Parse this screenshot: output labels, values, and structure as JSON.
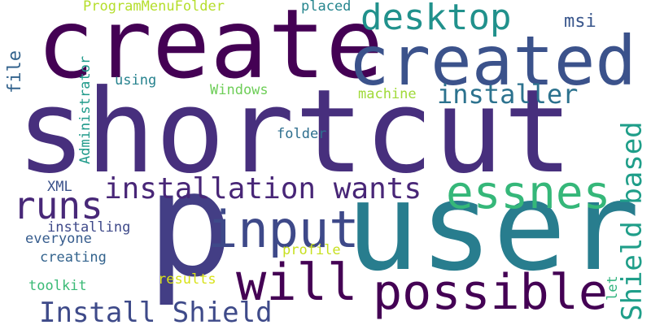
{
  "background": "#ffffff",
  "words": [
    {
      "text": "shortcut",
      "color": "#472f7d"
    },
    {
      "text": "user",
      "color": "#287d8e"
    },
    {
      "text": "create",
      "color": "#440154"
    },
    {
      "text": "created",
      "color": "#3b528b"
    },
    {
      "text": "p",
      "color": "#433e85"
    },
    {
      "text": "input",
      "color": "#3e4989"
    },
    {
      "text": "possible",
      "color": "#440154"
    },
    {
      "text": "will",
      "color": "#440154"
    },
    {
      "text": "essnes",
      "color": "#35b779"
    },
    {
      "text": "desktop",
      "color": "#21918c"
    },
    {
      "text": "installation wants",
      "color": "#482677"
    },
    {
      "text": "runs",
      "color": "#482878"
    },
    {
      "text": "Install Shield",
      "color": "#3e4a89"
    },
    {
      "text": "installer",
      "color": "#2c728e"
    },
    {
      "text": "Shield based",
      "color": "#1f9e89"
    },
    {
      "text": "msi",
      "color": "#39568c"
    },
    {
      "text": "ProgramMenuFolder",
      "color": "#b5de2b"
    },
    {
      "text": "placed",
      "color": "#25858e"
    },
    {
      "text": "Windows",
      "color": "#6ece58"
    },
    {
      "text": "machine",
      "color": "#a0da39"
    },
    {
      "text": "using",
      "color": "#26828e"
    },
    {
      "text": "folder",
      "color": "#2e6e8e"
    },
    {
      "text": "Administrator",
      "color": "#1f9a8a"
    },
    {
      "text": "file",
      "color": "#33638d"
    },
    {
      "text": "XML",
      "color": "#3b528b"
    },
    {
      "text": "installing",
      "color": "#3e4989"
    },
    {
      "text": "everyone",
      "color": "#365c8d"
    },
    {
      "text": "creating",
      "color": "#33638d"
    },
    {
      "text": "toolkit",
      "color": "#3aba76"
    },
    {
      "text": "profile",
      "color": "#c8e020"
    },
    {
      "text": "results",
      "color": "#d8e219"
    },
    {
      "text": "let",
      "color": "#2eb37c"
    }
  ]
}
